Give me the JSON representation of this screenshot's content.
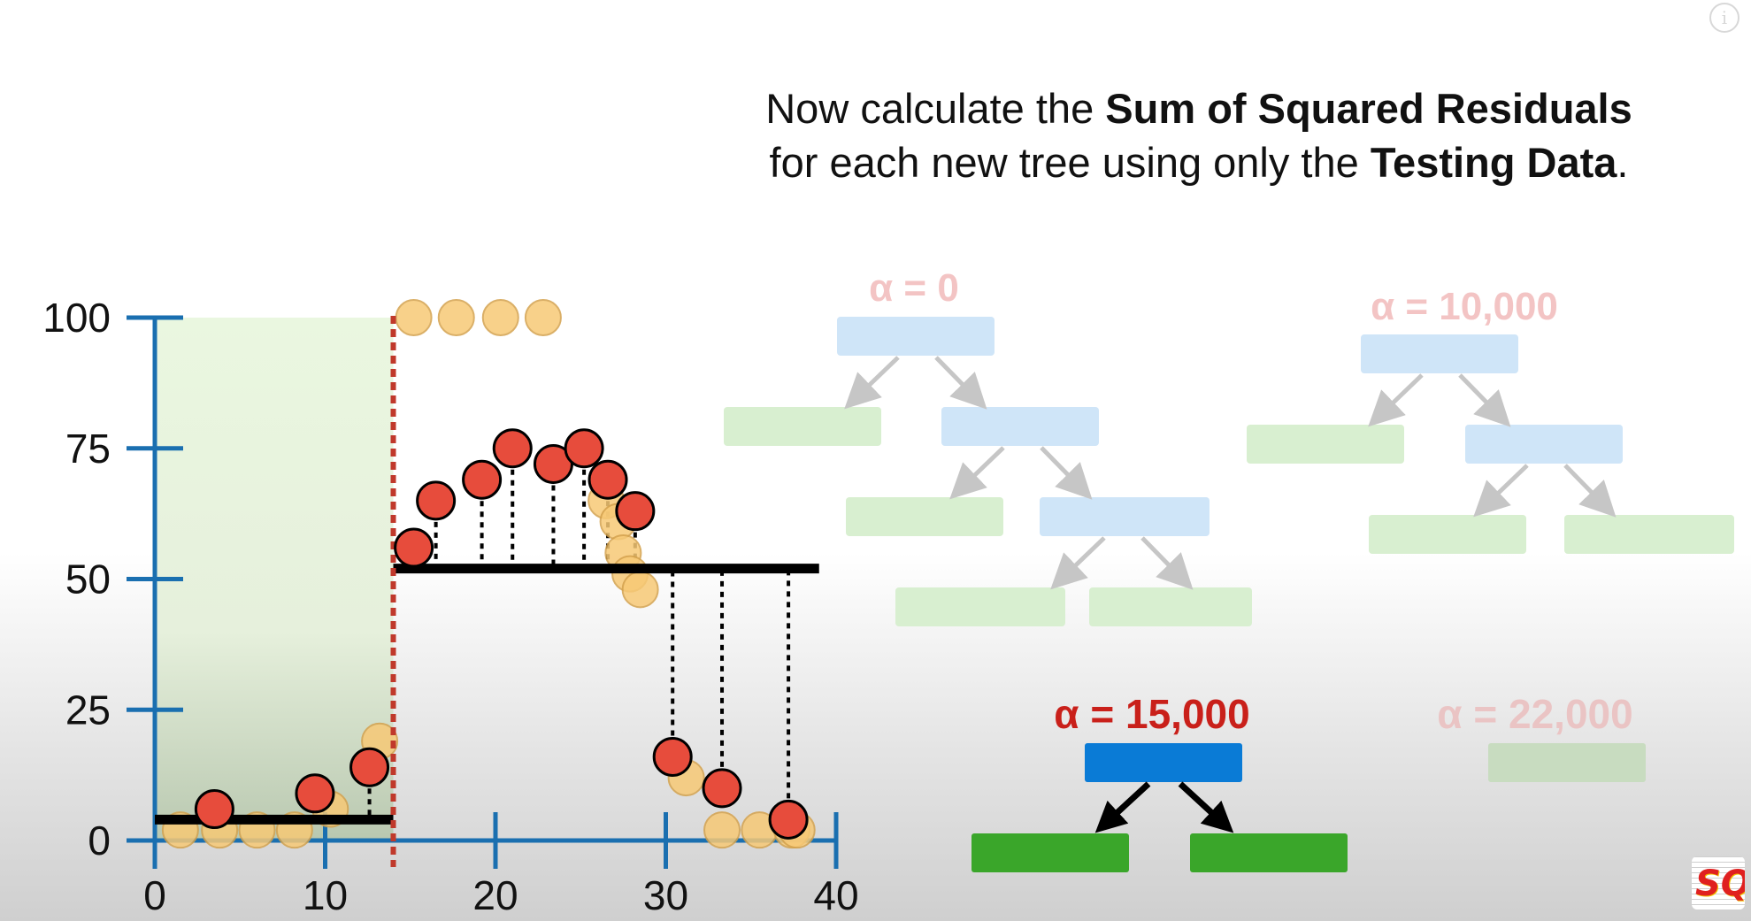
{
  "heading": {
    "line1_pre": "Now calculate the ",
    "line1_bold": "Sum of Squared Residuals",
    "line2_pre": "for each new tree using only the ",
    "line2_bold": "Testing Data",
    "line2_post": "."
  },
  "info_icon": "info-icon",
  "chart_data": {
    "type": "scatter",
    "xlim": [
      0,
      40
    ],
    "ylim": [
      0,
      100
    ],
    "x_ticks": [
      "0",
      "10",
      "20",
      "30",
      "40"
    ],
    "y_ticks": [
      "0",
      "25",
      "50",
      "75",
      "100"
    ],
    "split_x": 14,
    "prediction_lines": [
      {
        "x_start": 0,
        "x_end": 14,
        "y": 4
      },
      {
        "x_start": 14,
        "x_end": 39,
        "y": 52
      }
    ],
    "training_points": [
      [
        1.5,
        2
      ],
      [
        3.8,
        2
      ],
      [
        6,
        2
      ],
      [
        8.2,
        2
      ],
      [
        10.3,
        6
      ],
      [
        13.2,
        19
      ],
      [
        15.2,
        100
      ],
      [
        17.7,
        100
      ],
      [
        20.3,
        100
      ],
      [
        22.8,
        100
      ],
      [
        26.5,
        65
      ],
      [
        27.2,
        61
      ],
      [
        27.5,
        55
      ],
      [
        27.9,
        51
      ],
      [
        28.5,
        48
      ],
      [
        31.2,
        12
      ],
      [
        33.3,
        2
      ],
      [
        35.5,
        2
      ],
      [
        37.4,
        2
      ],
      [
        37.7,
        2
      ]
    ],
    "testing_points": [
      [
        3.5,
        6
      ],
      [
        9.4,
        9
      ],
      [
        12.6,
        14
      ],
      [
        15.2,
        56
      ],
      [
        16.5,
        65
      ],
      [
        19.2,
        69
      ],
      [
        21,
        75
      ],
      [
        23.4,
        72
      ],
      [
        25.2,
        75
      ],
      [
        26.6,
        69
      ],
      [
        28.2,
        63
      ],
      [
        30.4,
        16
      ],
      [
        33.3,
        10
      ],
      [
        37.2,
        4
      ]
    ],
    "colors": {
      "axis": "#1a6fb0",
      "split_line": "#c0392b",
      "shade": "#eaf7e0",
      "testing_fill": "#e74c3c",
      "training_fill": "#f7c976",
      "prediction": "#000000"
    }
  },
  "trees": {
    "alpha_0": "α = 0",
    "alpha_10000": "α = 10,000",
    "alpha_15000": "α = 15,000",
    "alpha_22000": "α = 22,000"
  },
  "colors": {
    "node_faded_blue": "#cfe5f8",
    "node_faded_green": "#d8efd0",
    "node_blue": "#0a7bd6",
    "node_green": "#3aa62a",
    "alpha_faded": "#f3c4c4",
    "alpha_active": "#c9201a",
    "arrow_faded": "#c6c6c6",
    "arrow_active": "#000000"
  },
  "logo_text": "SQ!"
}
